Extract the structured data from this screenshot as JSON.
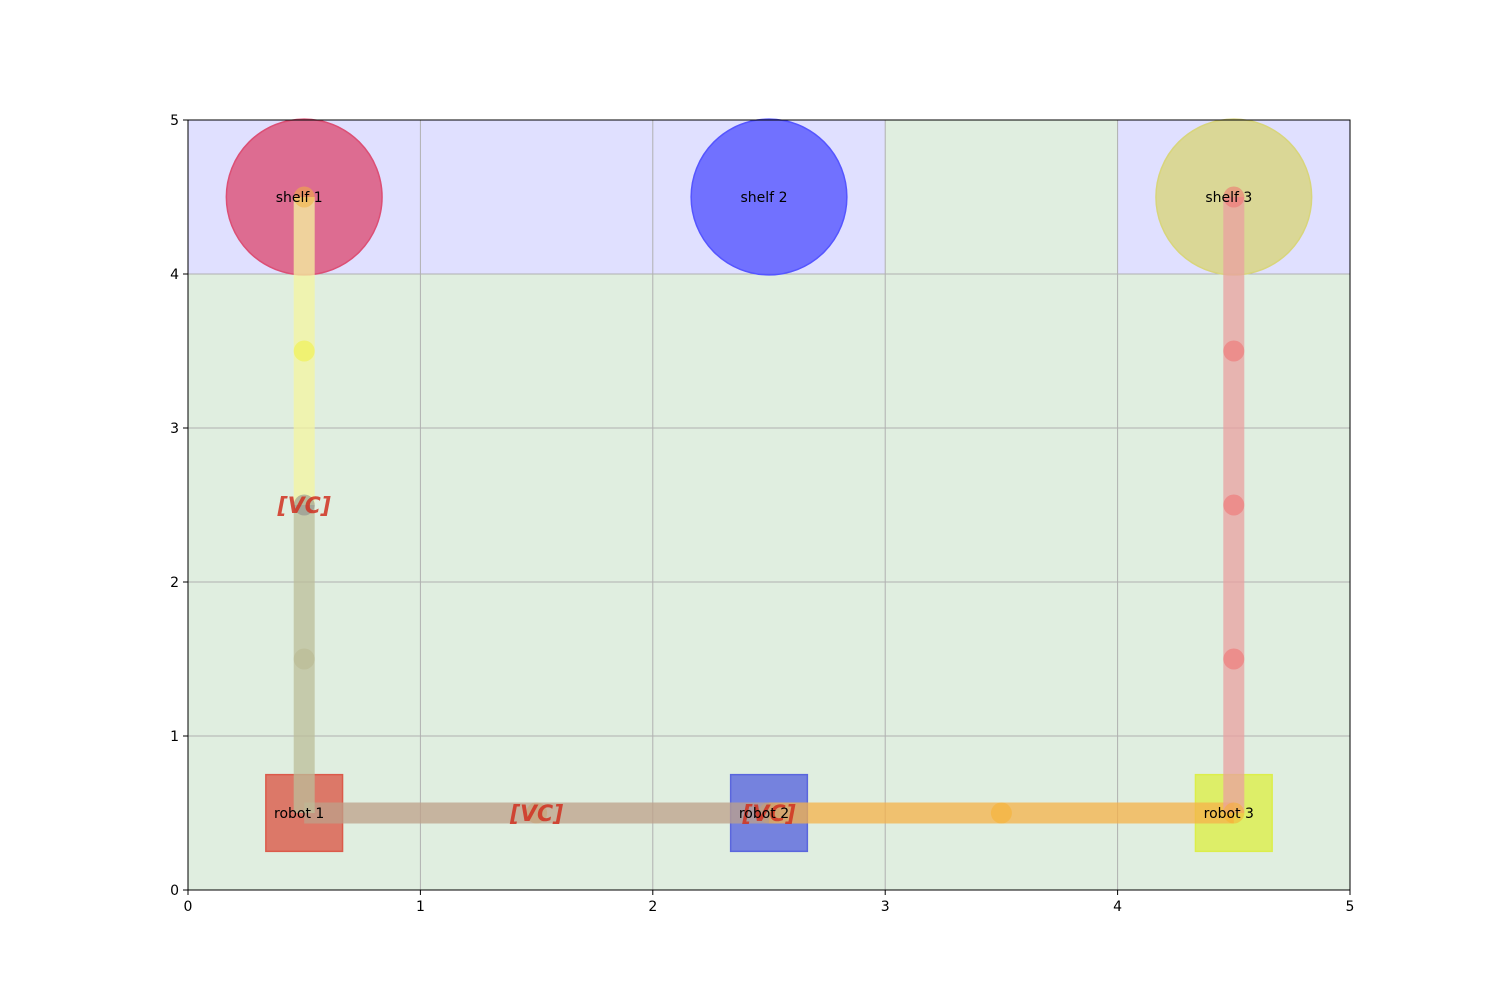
{
  "chart_data": {
    "type": "scatter",
    "title": "",
    "xlabel": "",
    "ylabel": "",
    "xlim": [
      0,
      5
    ],
    "ylim": [
      0,
      5
    ],
    "grid": true,
    "xticks": [
      "0",
      "1",
      "2",
      "3",
      "4",
      "5"
    ],
    "yticks": [
      "0",
      "1",
      "2",
      "3",
      "4",
      "5"
    ],
    "cell_regions": [
      {
        "x": [
          0,
          3
        ],
        "y": [
          4,
          5
        ],
        "color": "#e0e0ff"
      },
      {
        "x": [
          4,
          5
        ],
        "y": [
          4,
          5
        ],
        "color": "#e0e0ff"
      },
      {
        "x": [
          3,
          4
        ],
        "y": [
          4,
          5
        ],
        "color": "#e0eee0"
      },
      {
        "x": [
          0,
          5
        ],
        "y": [
          0,
          4
        ],
        "color": "#e0eee0"
      }
    ],
    "shelves": [
      {
        "label": "shelf 1",
        "x": 0.5,
        "y": 4.5,
        "color": "#dc4f75"
      },
      {
        "label": "shelf 2",
        "x": 2.5,
        "y": 4.5,
        "color": "#5555ff"
      },
      {
        "label": "shelf 3",
        "x": 4.5,
        "y": 4.5,
        "color": "#d8d57c"
      }
    ],
    "robots": [
      {
        "label": "robot 1",
        "x": 0.5,
        "y": 0.5,
        "color": "#db5a4a"
      },
      {
        "label": "robot 2",
        "x": 2.5,
        "y": 0.5,
        "color": "#5a66dd"
      },
      {
        "label": "robot 3",
        "x": 4.5,
        "y": 0.5,
        "color": "#dcee4a"
      }
    ],
    "paths": [
      {
        "color": "#bda08a",
        "points": [
          [
            0.5,
            0.5
          ],
          [
            1.5,
            0.5
          ],
          [
            2.5,
            0.5
          ]
        ]
      },
      {
        "color": "#f5b24a",
        "points": [
          [
            2.5,
            0.5
          ],
          [
            3.5,
            0.5
          ],
          [
            4.5,
            0.5
          ]
        ]
      },
      {
        "color": "#bcbe9a",
        "points": [
          [
            0.5,
            0.5
          ],
          [
            0.5,
            1.5
          ],
          [
            0.5,
            2.5
          ]
        ]
      },
      {
        "color": "#f4f4a0",
        "points": [
          [
            0.5,
            2.5
          ],
          [
            0.5,
            3.5
          ],
          [
            0.5,
            4.5
          ]
        ]
      },
      {
        "color": "#e9a0a0",
        "points": [
          [
            4.5,
            0.5
          ],
          [
            4.5,
            1.5
          ],
          [
            4.5,
            2.5
          ],
          [
            4.5,
            3.5
          ],
          [
            4.5,
            4.5
          ]
        ]
      }
    ],
    "markers": [
      {
        "x": 1.5,
        "y": 0.5,
        "color": "#c8a070"
      },
      {
        "x": 2.5,
        "y": 0.5,
        "color": "#c8a070"
      },
      {
        "x": 3.5,
        "y": 0.5,
        "color": "#f8b030"
      },
      {
        "x": 4.5,
        "y": 0.5,
        "color": "#f8b030"
      },
      {
        "x": 0.5,
        "y": 1.5,
        "color": "#b8b890"
      },
      {
        "x": 0.5,
        "y": 2.5,
        "color": "#888888"
      },
      {
        "x": 0.5,
        "y": 3.5,
        "color": "#f0f040"
      },
      {
        "x": 0.5,
        "y": 4.5,
        "color": "#f0b040"
      },
      {
        "x": 4.5,
        "y": 1.5,
        "color": "#f07070"
      },
      {
        "x": 4.5,
        "y": 2.5,
        "color": "#f07070"
      },
      {
        "x": 4.5,
        "y": 3.5,
        "color": "#f07070"
      },
      {
        "x": 4.5,
        "y": 4.5,
        "color": "#f07070"
      }
    ],
    "vc_labels": [
      {
        "text": "[VC]",
        "x": 0.5,
        "y": 2.5,
        "color": "#d03020"
      },
      {
        "text": "[VC]",
        "x": 1.5,
        "y": 0.5,
        "color": "#d03020"
      },
      {
        "text": "[VC]",
        "x": 2.5,
        "y": 0.5,
        "color": "#d03020"
      }
    ]
  }
}
